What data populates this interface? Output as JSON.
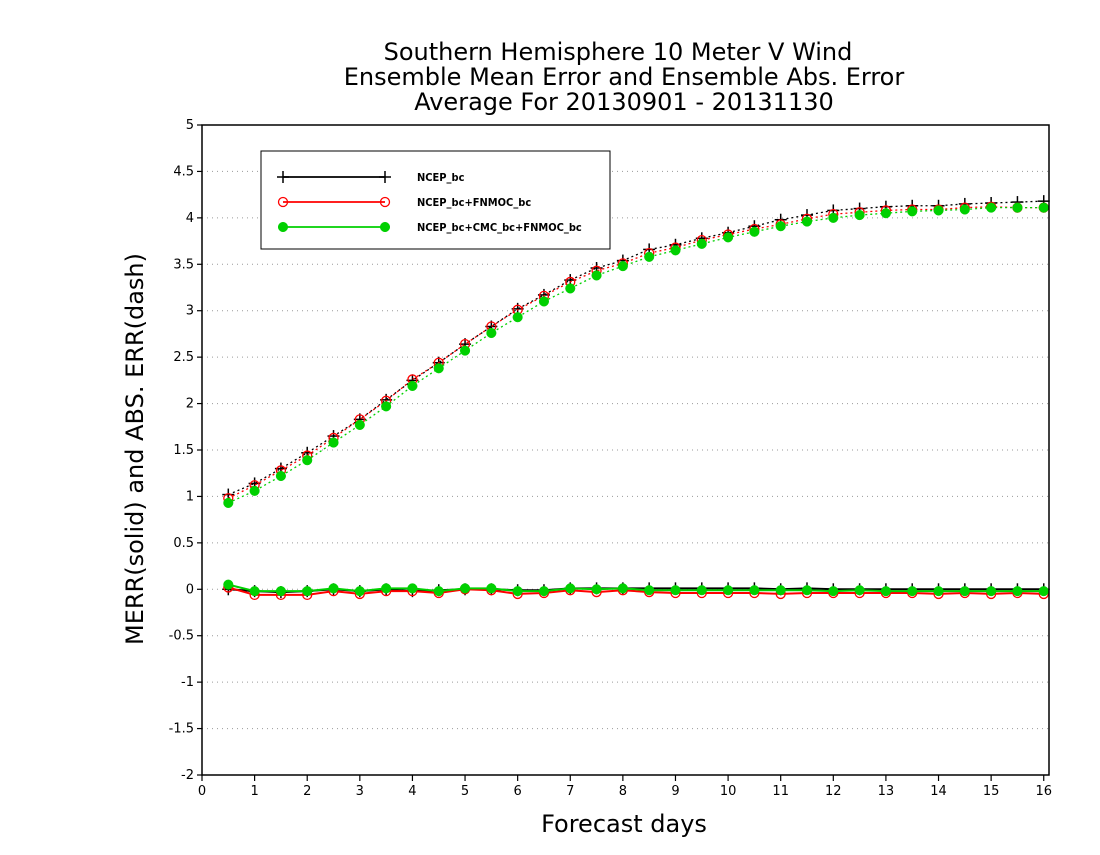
{
  "chart_data": {
    "type": "line",
    "title": [
      "Southern Hemisphere 10 Meter V Wind",
      "Ensemble Mean Error and Ensemble Abs. Error",
      "Average For 20130901 - 20131130"
    ],
    "xlabel": "Forecast days",
    "ylabel": "MERR(solid) and ABS. ERR(dash)",
    "xlim": [
      0,
      16.1
    ],
    "ylim": [
      -2,
      5
    ],
    "xticks": [
      0,
      1,
      2,
      3,
      4,
      5,
      6,
      7,
      8,
      9,
      10,
      11,
      12,
      13,
      14,
      15,
      16
    ],
    "yticks": [
      -2,
      -1.5,
      -1,
      -0.5,
      0,
      0.5,
      1,
      1.5,
      2,
      2.5,
      3,
      3.5,
      4,
      4.5,
      5
    ],
    "ytick_labels": [
      "-2",
      "-1.5",
      "-1",
      "-0.5",
      "0",
      "0.5",
      "1",
      "1.5",
      "2",
      "2.5",
      "3",
      "3.5",
      "4",
      "4.5",
      "5"
    ],
    "grid": true,
    "legend_position": "top-left",
    "x": [
      0.5,
      1,
      1.5,
      2,
      2.5,
      3,
      3.5,
      4,
      4.5,
      5,
      5.5,
      6,
      6.5,
      7,
      7.5,
      8,
      8.5,
      9,
      9.5,
      10,
      10.5,
      11,
      11.5,
      12,
      12.5,
      13,
      13.5,
      14,
      14.5,
      15,
      15.5,
      16
    ],
    "series": [
      {
        "name": "NCEP_bc",
        "color": "#000000",
        "marker": "plus",
        "abs_err": [
          1.02,
          1.14,
          1.3,
          1.47,
          1.65,
          1.83,
          2.04,
          2.25,
          2.44,
          2.64,
          2.83,
          3.02,
          3.17,
          3.33,
          3.46,
          3.54,
          3.66,
          3.71,
          3.78,
          3.84,
          3.91,
          3.98,
          4.03,
          4.08,
          4.1,
          4.12,
          4.13,
          4.13,
          4.15,
          4.16,
          4.17,
          4.18
        ],
        "mean_err": [
          0.0,
          -0.02,
          -0.03,
          -0.02,
          0.0,
          -0.02,
          0.0,
          -0.02,
          -0.01,
          0.0,
          0.0,
          -0.01,
          -0.01,
          0.01,
          0.01,
          0.01,
          0.01,
          0.01,
          0.01,
          0.01,
          0.01,
          0.0,
          0.01,
          0.0,
          0.0,
          0.0,
          0.0,
          0.0,
          0.0,
          0.0,
          0.0,
          0.0
        ]
      },
      {
        "name": "NCEP_bc+FNMOC_bc",
        "color": "#ff0000",
        "marker": "open-circle",
        "abs_err": [
          0.98,
          1.12,
          1.28,
          1.44,
          1.63,
          1.83,
          2.03,
          2.26,
          2.44,
          2.64,
          2.83,
          3.01,
          3.16,
          3.31,
          3.43,
          3.51,
          3.62,
          3.68,
          3.76,
          3.82,
          3.88,
          3.93,
          3.99,
          4.04,
          4.06,
          4.08,
          4.09,
          4.09,
          4.11,
          4.12,
          4.11,
          4.11
        ],
        "mean_err": [
          0.02,
          -0.06,
          -0.06,
          -0.06,
          -0.02,
          -0.05,
          -0.02,
          -0.02,
          -0.04,
          0.0,
          -0.01,
          -0.05,
          -0.04,
          -0.01,
          -0.03,
          -0.01,
          -0.03,
          -0.04,
          -0.04,
          -0.04,
          -0.04,
          -0.05,
          -0.04,
          -0.04,
          -0.04,
          -0.04,
          -0.04,
          -0.05,
          -0.04,
          -0.05,
          -0.04,
          -0.05
        ]
      },
      {
        "name": "NCEP_bc+CMC_bc+FNMOC_bc",
        "color": "#00d000",
        "marker": "filled-circle",
        "abs_err": [
          0.93,
          1.06,
          1.22,
          1.39,
          1.58,
          1.77,
          1.97,
          2.19,
          2.38,
          2.57,
          2.76,
          2.93,
          3.1,
          3.24,
          3.38,
          3.48,
          3.58,
          3.65,
          3.72,
          3.79,
          3.85,
          3.91,
          3.96,
          4.0,
          4.03,
          4.05,
          4.07,
          4.08,
          4.09,
          4.11,
          4.11,
          4.11
        ],
        "mean_err": [
          0.05,
          -0.02,
          -0.02,
          -0.02,
          0.01,
          -0.02,
          0.01,
          0.01,
          -0.02,
          0.01,
          0.01,
          -0.02,
          -0.02,
          0.01,
          0.0,
          0.01,
          -0.01,
          -0.01,
          -0.01,
          -0.01,
          -0.01,
          -0.01,
          -0.01,
          -0.02,
          -0.01,
          -0.02,
          -0.02,
          -0.02,
          -0.02,
          -0.02,
          -0.02,
          -0.02
        ]
      }
    ]
  }
}
